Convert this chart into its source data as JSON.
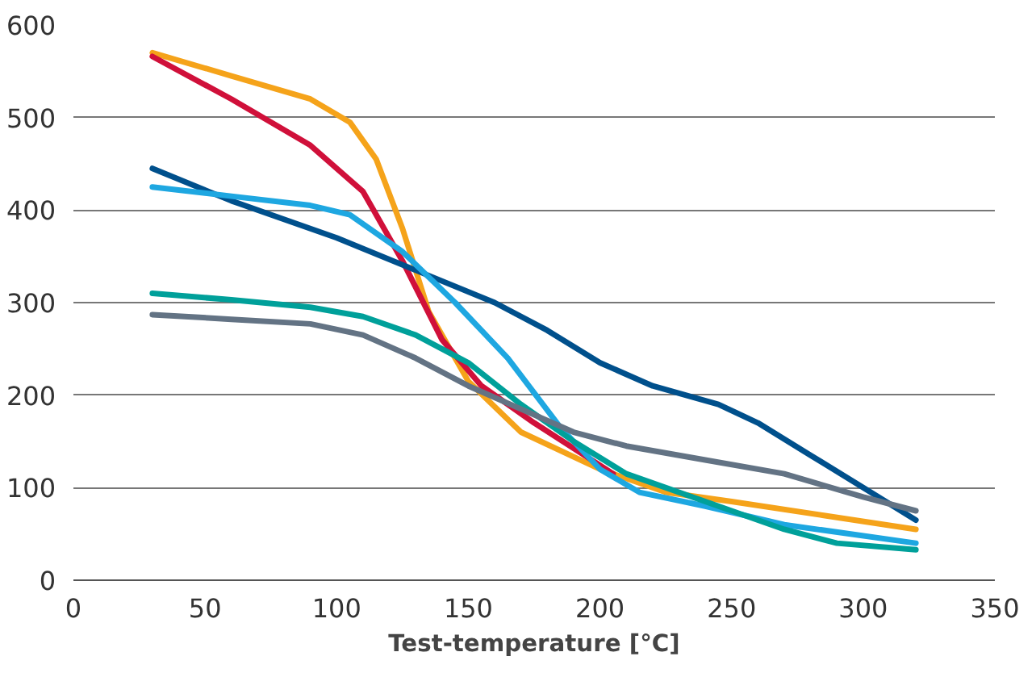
{
  "chart_data": {
    "type": "line",
    "xlabel": "Test-temperature [°C]",
    "xlim": [
      0,
      350
    ],
    "xticks": [
      0,
      50,
      100,
      150,
      200,
      250,
      300,
      350
    ],
    "ylim": [
      0,
      600
    ],
    "yticks": [
      0,
      100,
      200,
      300,
      400,
      500,
      600
    ],
    "grid": "y",
    "series": [
      {
        "color": "#f5a31a",
        "x": [
          30,
          60,
          90,
          105,
          115,
          125,
          135,
          150,
          170,
          200,
          225,
          250,
          285,
          320
        ],
        "values": [
          570,
          545,
          520,
          495,
          455,
          380,
          290,
          215,
          160,
          120,
          95,
          85,
          70,
          55
        ]
      },
      {
        "color": "#d0103a",
        "x": [
          30,
          60,
          90,
          110,
          125,
          140,
          155,
          175,
          205
        ],
        "values": [
          566,
          520,
          470,
          420,
          345,
          260,
          210,
          170,
          115
        ]
      },
      {
        "color": "#00508c",
        "x": [
          30,
          60,
          100,
          130,
          160,
          180,
          200,
          220,
          245,
          260,
          280,
          300,
          320
        ],
        "values": [
          445,
          410,
          370,
          335,
          300,
          270,
          235,
          210,
          190,
          170,
          135,
          100,
          65
        ]
      },
      {
        "color": "#1ea7e1",
        "x": [
          30,
          60,
          90,
          105,
          125,
          145,
          165,
          185,
          200,
          215,
          240,
          270,
          320
        ],
        "values": [
          425,
          415,
          405,
          395,
          355,
          300,
          240,
          165,
          120,
          95,
          80,
          60,
          40
        ]
      },
      {
        "color": "#00a09a",
        "x": [
          30,
          60,
          90,
          110,
          130,
          150,
          170,
          190,
          210,
          240,
          270,
          290,
          320
        ],
        "values": [
          310,
          303,
          295,
          285,
          265,
          235,
          190,
          150,
          115,
          85,
          55,
          40,
          33
        ]
      },
      {
        "color": "#637384",
        "x": [
          30,
          60,
          90,
          110,
          130,
          150,
          170,
          190,
          210,
          240,
          270,
          300,
          320
        ],
        "values": [
          287,
          282,
          277,
          265,
          240,
          210,
          185,
          160,
          145,
          130,
          115,
          90,
          75
        ]
      }
    ]
  }
}
